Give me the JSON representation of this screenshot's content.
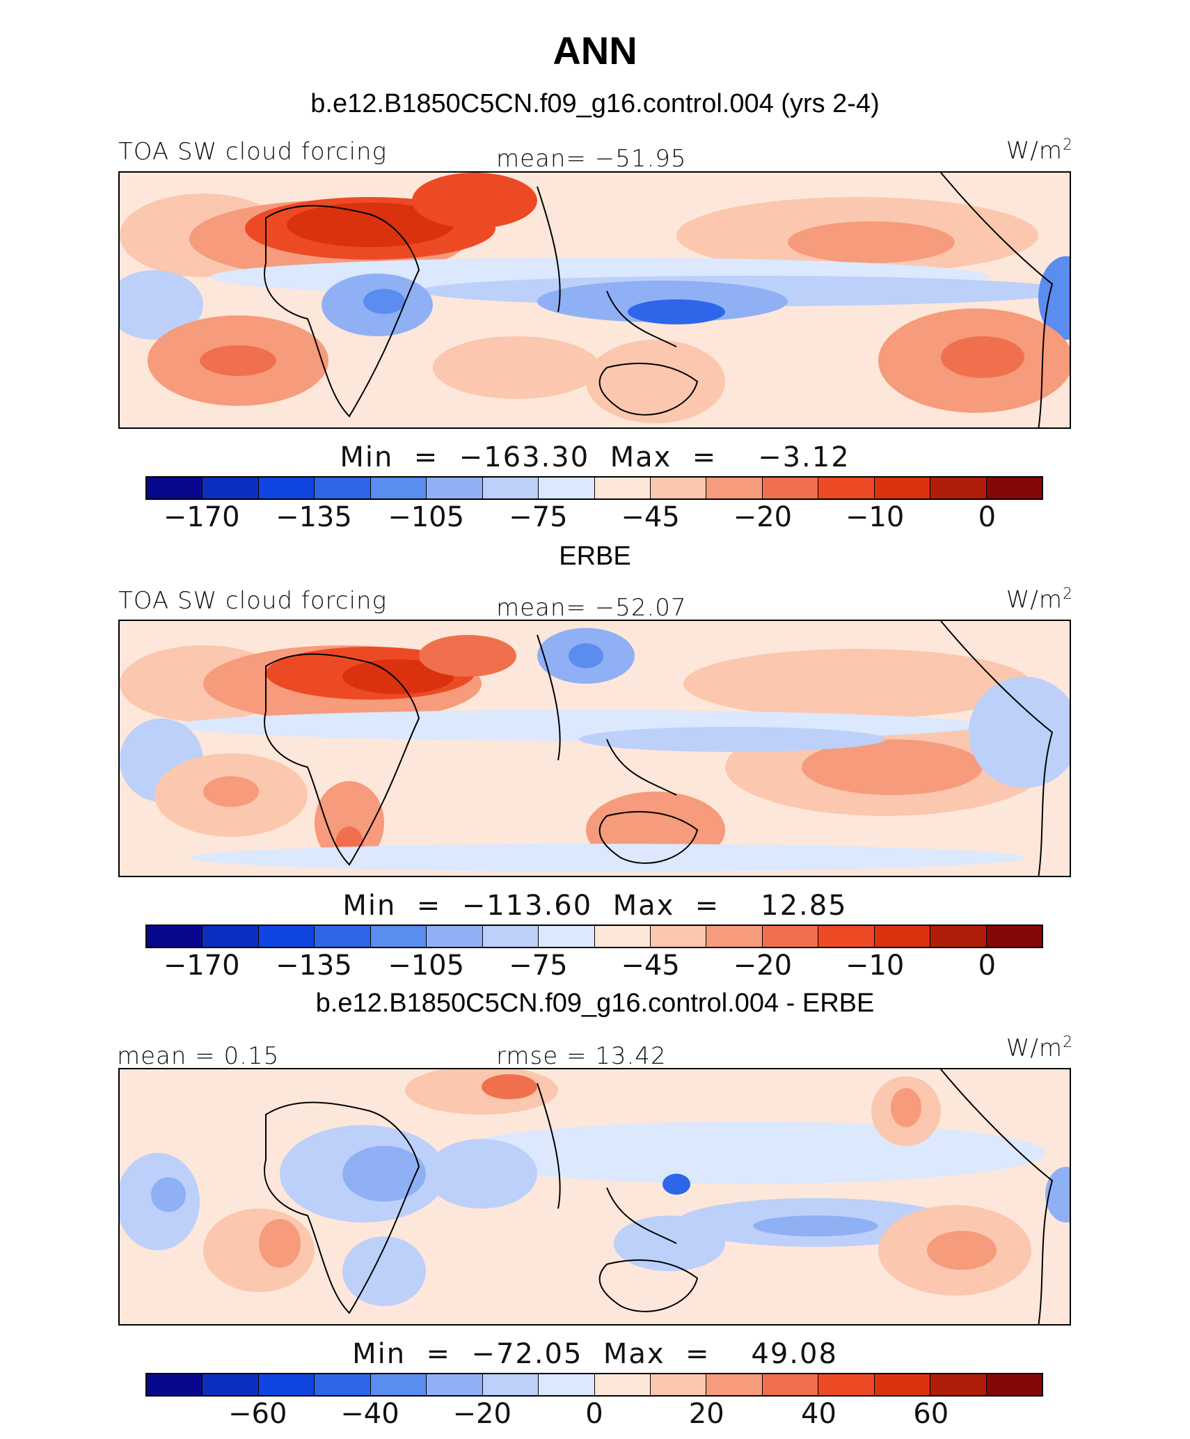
{
  "title": "ANN",
  "colors": [
    "#08088c",
    "#0c2fc0",
    "#0f45e0",
    "#2e66ea",
    "#5b8cf0",
    "#8fb0f5",
    "#bcd0fa",
    "#dbe8fd",
    "#fde7da",
    "#fbc7ae",
    "#f69b7b",
    "#f0704d",
    "#ec4a25",
    "#da320f",
    "#b01d08",
    "#840808"
  ],
  "panels": [
    {
      "title": "b.e12.B1850C5CN.f09_g16.control.004 (yrs 2-4)",
      "left_label": "TOA SW cloud forcing",
      "center_label": "mean=  −51.95",
      "units": "W/m",
      "units_sup": "2",
      "minmax": "Min  =  −163.30  Max  =    −3.12",
      "ticks": [
        "−170",
        "−135",
        "−105",
        "−75",
        "−45",
        "−20",
        "−10",
        "0"
      ]
    },
    {
      "title": "ERBE",
      "left_label": "TOA SW cloud forcing",
      "center_label": "mean=  −52.07",
      "units": "W/m",
      "units_sup": "2",
      "minmax": "Min  =  −113.60  Max  =    12.85",
      "ticks": [
        "−170",
        "−135",
        "−105",
        "−75",
        "−45",
        "−20",
        "−10",
        "0"
      ]
    },
    {
      "title": "b.e12.B1850C5CN.f09_g16.control.004 - ERBE",
      "left_label": "mean  =    0.15",
      "center_label": "rmse  =   13.42",
      "units": "W/m",
      "units_sup": "2",
      "minmax": "Min  =  −72.05  Max  =    49.08",
      "ticks": [
        "−60",
        "−40",
        "−20",
        "0",
        "20",
        "40",
        "60"
      ]
    }
  ]
}
